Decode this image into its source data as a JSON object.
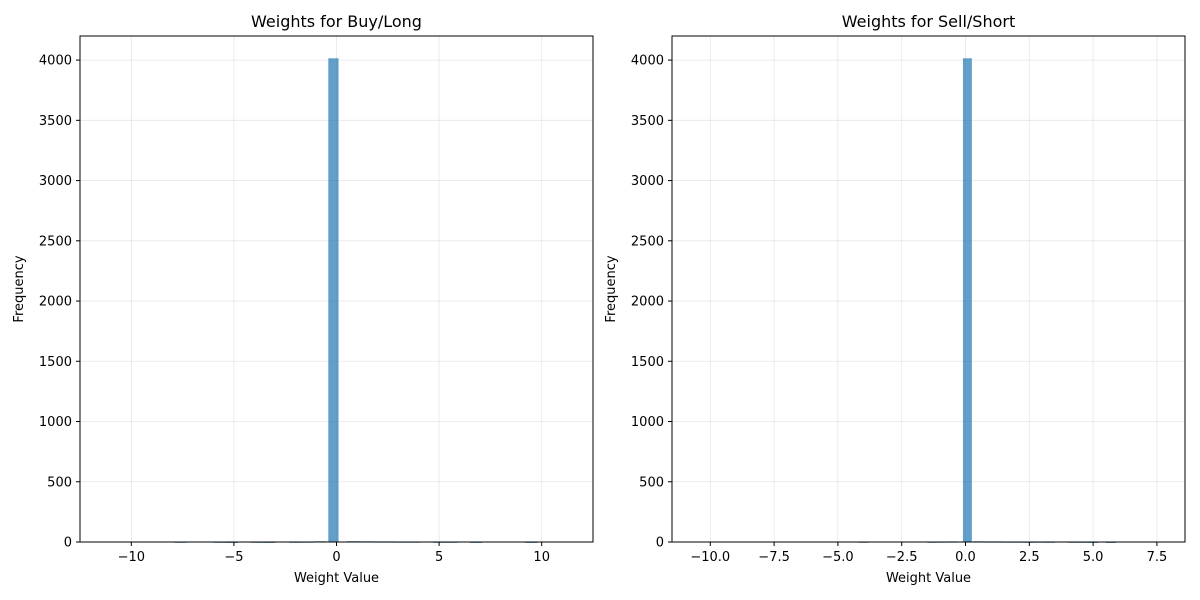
{
  "chart_data": [
    {
      "type": "bar",
      "title": "Weights for Buy/Long",
      "xlabel": "Weight Value",
      "ylabel": "Frequency",
      "xlim": [
        -12.5,
        12.5
      ],
      "ylim": [
        0,
        4200
      ],
      "xticks": [
        -10,
        -5,
        0,
        5,
        10
      ],
      "xtick_labels": [
        "−10",
        "−5",
        "0",
        "5",
        "10"
      ],
      "yticks": [
        0,
        500,
        1000,
        1500,
        2000,
        2500,
        3000,
        3500,
        4000
      ],
      "ytick_labels": [
        "0",
        "500",
        "1000",
        "1500",
        "2000",
        "2500",
        "3000",
        "3500",
        "4000"
      ],
      "grid": true,
      "bins": [
        {
          "x0": -7.9,
          "x1": -7.3,
          "value": 3
        },
        {
          "x0": -6.0,
          "x1": -5.4,
          "value": 3
        },
        {
          "x0": -5.4,
          "x1": -4.8,
          "value": 2
        },
        {
          "x0": -4.2,
          "x1": -3.6,
          "value": 3
        },
        {
          "x0": -3.6,
          "x1": -3.0,
          "value": 2
        },
        {
          "x0": -2.3,
          "x1": -1.7,
          "value": 3
        },
        {
          "x0": -1.7,
          "x1": -1.1,
          "value": 4
        },
        {
          "x0": -1.1,
          "x1": -0.5,
          "value": 6
        },
        {
          "x0": -0.4,
          "x1": 0.1,
          "value": 4015
        },
        {
          "x0": 0.5,
          "x1": 1.1,
          "value": 7
        },
        {
          "x0": 1.1,
          "x1": 1.7,
          "value": 6
        },
        {
          "x0": 1.7,
          "x1": 2.3,
          "value": 5
        },
        {
          "x0": 2.3,
          "x1": 2.9,
          "value": 5
        },
        {
          "x0": 2.9,
          "x1": 3.5,
          "value": 4
        },
        {
          "x0": 3.5,
          "x1": 4.1,
          "value": 4
        },
        {
          "x0": 4.7,
          "x1": 5.3,
          "value": 3
        },
        {
          "x0": 5.3,
          "x1": 5.9,
          "value": 3
        },
        {
          "x0": 6.5,
          "x1": 7.1,
          "value": 2
        },
        {
          "x0": 9.2,
          "x1": 9.8,
          "value": 2
        }
      ]
    },
    {
      "type": "bar",
      "title": "Weights for Sell/Short",
      "xlabel": "Weight Value",
      "ylabel": "Frequency",
      "xlim": [
        -11.5,
        8.6
      ],
      "ylim": [
        0,
        4200
      ],
      "xticks": [
        -10.0,
        -7.5,
        -5.0,
        -2.5,
        0.0,
        2.5,
        5.0,
        7.5
      ],
      "xtick_labels": [
        "−10.0",
        "−7.5",
        "−5.0",
        "−2.5",
        "0.0",
        "2.5",
        "5.0",
        "7.5"
      ],
      "yticks": [
        0,
        500,
        1000,
        1500,
        2000,
        2500,
        3000,
        3500,
        4000
      ],
      "ytick_labels": [
        "0",
        "500",
        "1000",
        "1500",
        "2000",
        "2500",
        "3000",
        "3500",
        "4000"
      ],
      "grid": true,
      "bins": [
        {
          "x0": -4.2,
          "x1": -3.8,
          "value": 3
        },
        {
          "x0": -1.5,
          "x1": -1.1,
          "value": 3
        },
        {
          "x0": -1.1,
          "x1": -0.7,
          "value": 4
        },
        {
          "x0": -0.7,
          "x1": -0.3,
          "value": 5
        },
        {
          "x0": -0.1,
          "x1": 0.25,
          "value": 4015
        },
        {
          "x0": 0.3,
          "x1": 0.7,
          "value": 6
        },
        {
          "x0": 0.7,
          "x1": 1.1,
          "value": 5
        },
        {
          "x0": 1.1,
          "x1": 1.5,
          "value": 5
        },
        {
          "x0": 1.5,
          "x1": 1.9,
          "value": 4
        },
        {
          "x0": 1.9,
          "x1": 2.3,
          "value": 4
        },
        {
          "x0": 2.3,
          "x1": 2.7,
          "value": 3
        },
        {
          "x0": 2.7,
          "x1": 3.1,
          "value": 4
        },
        {
          "x0": 3.1,
          "x1": 3.5,
          "value": 3
        },
        {
          "x0": 4.0,
          "x1": 4.4,
          "value": 3
        },
        {
          "x0": 4.4,
          "x1": 4.8,
          "value": 3
        },
        {
          "x0": 4.8,
          "x1": 5.2,
          "value": 2
        },
        {
          "x0": 5.5,
          "x1": 5.9,
          "value": 2
        }
      ]
    }
  ]
}
